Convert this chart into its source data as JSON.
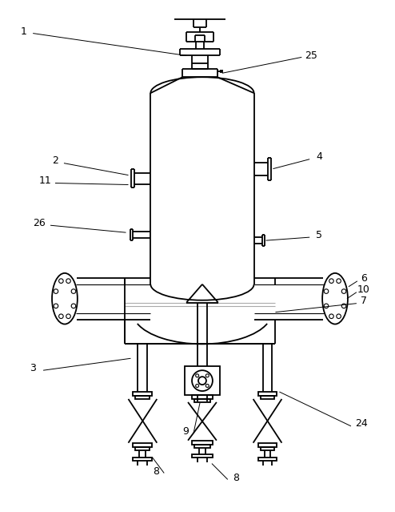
{
  "bg_color": "#ffffff",
  "lc": "#000000",
  "lw": 1.3,
  "tlw": 0.8,
  "glc": "#aaaaaa",
  "fs": 9.0
}
